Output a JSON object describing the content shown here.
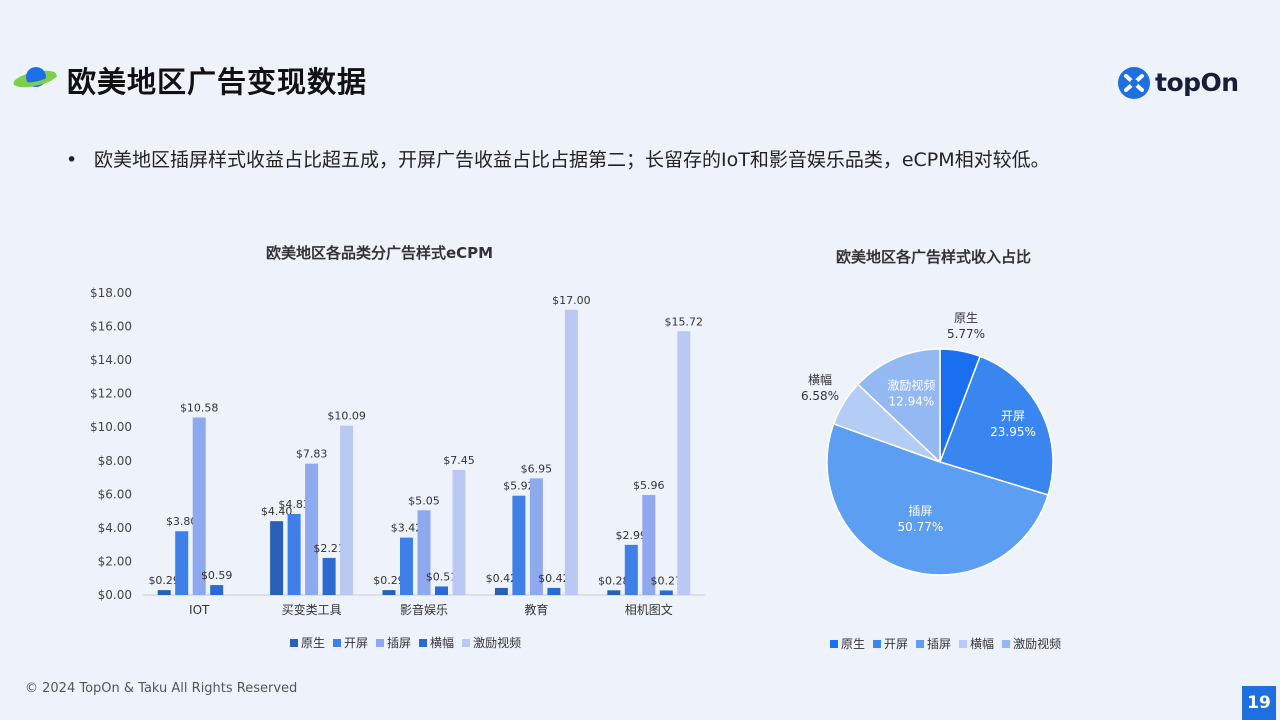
{
  "header": {
    "title": "欧美地区广告变现数据",
    "logo_text": "topOn"
  },
  "bullet": "欧美地区插屏样式收益占比超五成，开屏广告收益占比占据第二；长留存的IoT和影音娱乐品类，eCPM相对较低。",
  "footer": {
    "copyright": "© 2024 TopOn & Taku All Rights Reserved",
    "page_number": "19"
  },
  "colors": {
    "primary": "#1e6fe0",
    "series": [
      "#2a5fb8",
      "#3f7fe8",
      "#8fa9ef",
      "#2b6ad4",
      "#b9c9f4"
    ],
    "pie": [
      "#1a6ff0",
      "#3a86f0",
      "#5b9ef2",
      "#b4cdf6",
      "#94b8f1"
    ]
  },
  "chart_data": [
    {
      "type": "bar",
      "title": "欧美地区各品类分广告样式eCPM",
      "categories": [
        "IOT",
        "买变类工具",
        "影音娱乐",
        "教育",
        "相机图文"
      ],
      "series": [
        {
          "name": "原生",
          "values": [
            0.29,
            4.4,
            0.29,
            0.42,
            0.28
          ]
        },
        {
          "name": "开屏",
          "values": [
            3.8,
            4.83,
            3.42,
            5.92,
            2.99
          ]
        },
        {
          "name": "插屏",
          "values": [
            10.58,
            7.83,
            5.05,
            6.95,
            5.96
          ]
        },
        {
          "name": "横幅",
          "values": [
            0.59,
            2.21,
            0.51,
            0.42,
            0.27
          ]
        },
        {
          "name": "激励视频",
          "values": [
            null,
            10.09,
            7.45,
            17.0,
            15.72
          ]
        }
      ],
      "value_labels": [
        [
          "$0.29",
          "$4.40",
          "$0.29",
          "$0.42",
          "$0.28"
        ],
        [
          "$3.80",
          "$4.83",
          "$3.42",
          "$5.92",
          "$2.99"
        ],
        [
          "$10.58",
          "$7.83",
          "$5.05",
          "$6.95",
          "$5.96"
        ],
        [
          "$0.59",
          "$2.21",
          "$0.51",
          "$0.42",
          "$0.27"
        ],
        [
          null,
          "$10.09",
          "$7.45",
          "$17.00",
          "$15.72"
        ]
      ],
      "ylim": [
        0,
        18
      ],
      "yticks": [
        "$0.00",
        "$2.00",
        "$4.00",
        "$6.00",
        "$8.00",
        "$10.00",
        "$12.00",
        "$14.00",
        "$16.00",
        "$18.00"
      ],
      "legend_position": "bottom",
      "grid": false
    },
    {
      "type": "pie",
      "title": "欧美地区各广告样式收入占比",
      "slices": [
        {
          "name": "原生",
          "value": 5.77,
          "label": "5.77%"
        },
        {
          "name": "开屏",
          "value": 23.95,
          "label": "23.95%"
        },
        {
          "name": "插屏",
          "value": 50.77,
          "label": "50.77%"
        },
        {
          "name": "横幅",
          "value": 6.58,
          "label": "6.58%"
        },
        {
          "name": "激励视频",
          "value": 12.94,
          "label": "12.94%"
        }
      ],
      "legend_position": "bottom"
    }
  ]
}
